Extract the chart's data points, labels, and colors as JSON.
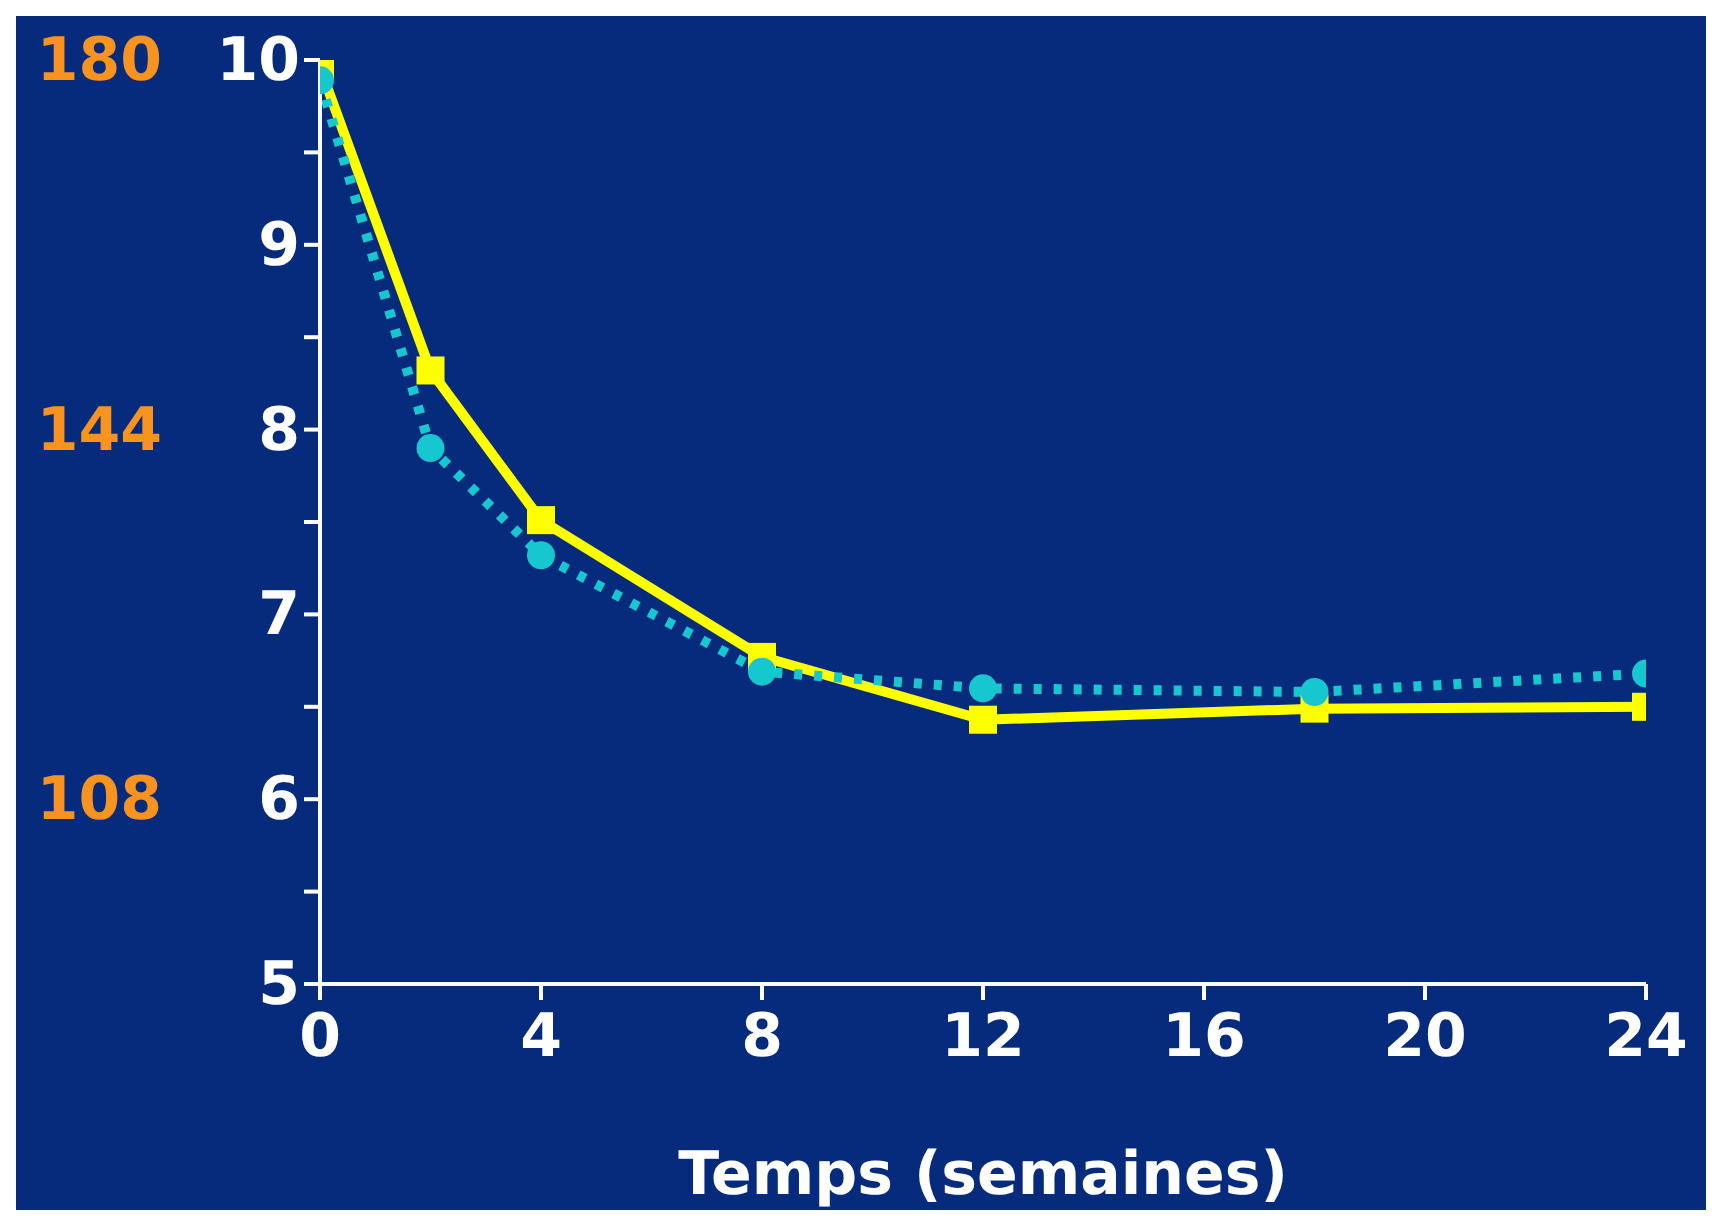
{
  "chart_data": {
    "type": "line",
    "xlabel": "Temps (semaines)",
    "x": [
      0,
      2,
      4,
      8,
      12,
      18,
      24
    ],
    "series": [
      {
        "color": "#ffff00",
        "values": [
          9.96,
          8.32,
          7.51,
          6.77,
          6.43,
          6.49,
          6.5
        ],
        "marker": "square",
        "line_style": "solid"
      },
      {
        "color": "#17c7d0",
        "values": [
          9.89,
          7.9,
          7.32,
          6.69,
          6.6,
          6.58,
          6.68
        ],
        "marker": "circle",
        "line_style": "dotted"
      }
    ],
    "xlim": [
      0,
      24
    ],
    "xticks": [
      0,
      4,
      8,
      12,
      16,
      20,
      24
    ],
    "ylim": [
      5,
      10
    ],
    "yticks": [
      5,
      {
        "value": 5.5,
        "label": null
      },
      6,
      {
        "value": 6.5,
        "label": null
      },
      7,
      {
        "value": 7.5,
        "label": null
      },
      8,
      {
        "value": 8.5,
        "label": null
      },
      9,
      {
        "value": 9.5,
        "label": null
      },
      10
    ],
    "y2lim": [
      90,
      180
    ],
    "y2ticks": [
      108,
      144,
      180
    ],
    "grid": false
  }
}
